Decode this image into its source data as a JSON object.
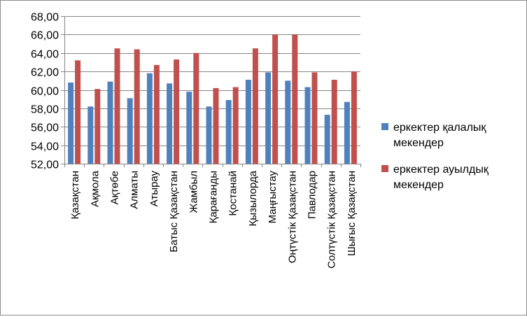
{
  "chart_data": {
    "type": "bar",
    "title": "",
    "xlabel": "",
    "ylabel": "",
    "ylim": [
      52,
      68
    ],
    "yticks": [
      "52,00",
      "54,00",
      "56,00",
      "58,00",
      "60,00",
      "62,00",
      "64,00",
      "66,00",
      "68,00"
    ],
    "grid": "horizontal",
    "legend_position": "right",
    "categories": [
      "Қазақстан",
      "Ақмола",
      "Ақтөбе",
      "Алматы",
      "Атырау",
      "Батыс Қазақстан",
      "Жамбыл",
      "Қарағанды",
      "Қостанай",
      "Қызылорда",
      "Маңғыстау",
      "Оңтүстік Қазақстан",
      "Павлодар",
      "Солтүстік Қазақстан",
      "Шығыс Қазақстан"
    ],
    "series": [
      {
        "name": "еркектер  қалалық мекендер",
        "color": "#4f81bd",
        "values": [
          60.8,
          58.2,
          60.9,
          59.1,
          61.8,
          60.7,
          59.8,
          58.2,
          58.9,
          61.1,
          61.9,
          61.0,
          60.3,
          57.3,
          58.7
        ]
      },
      {
        "name": "еркектер ауылдық мекендер",
        "color": "#c0504d",
        "values": [
          63.2,
          60.1,
          64.5,
          64.4,
          62.7,
          63.3,
          64.0,
          60.2,
          60.3,
          64.5,
          66.0,
          66.0,
          61.9,
          61.1,
          62.0
        ]
      }
    ],
    "legend": [
      {
        "lines": [
          "еркектер  қалалық",
          "мекендер"
        ]
      },
      {
        "lines": [
          "еркектер ауылдық",
          "мекендер"
        ]
      }
    ]
  }
}
